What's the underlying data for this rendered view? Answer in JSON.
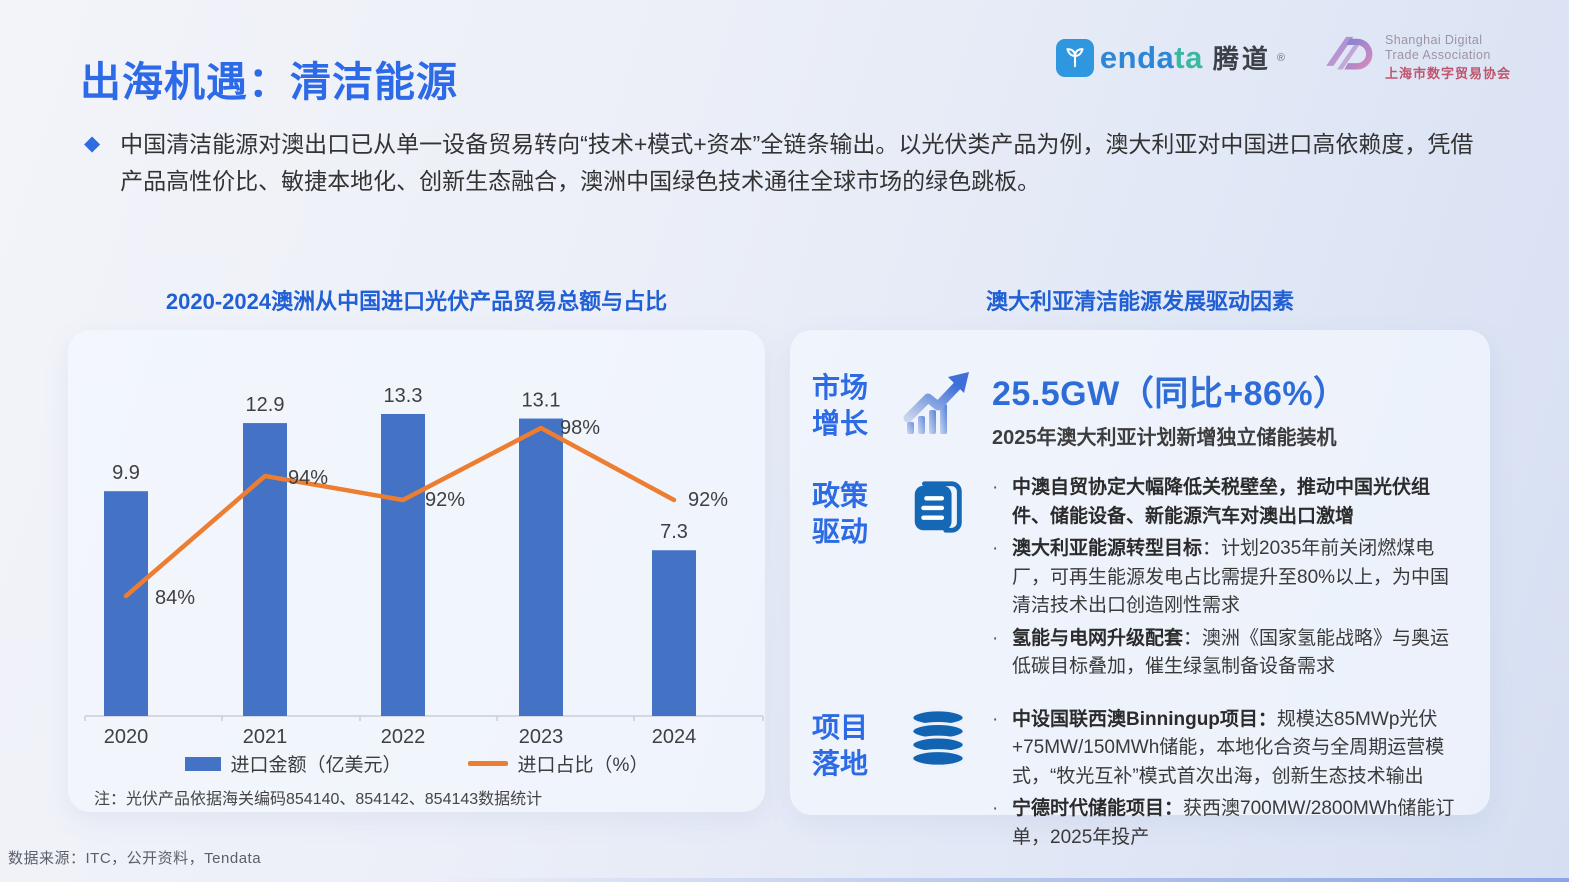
{
  "header": {
    "title": "出海机遇：清洁能源",
    "logos": {
      "tendata": {
        "wordmark_blue": "enda",
        "wordmark_teal": "ta",
        "cn": "腾道",
        "reg": "®"
      },
      "sdta": {
        "en_line1": "Shanghai Digital",
        "en_line2": "Trade Association",
        "cn_line": "上海市数字贸易协会"
      }
    }
  },
  "intro": {
    "bullet": "◆",
    "text": "中国清洁能源对澳出口已从单一设备贸易转向“技术+模式+资本”全链条输出。以光伏类产品为例，澳大利亚对中国进口高依赖度，凭借产品高性价比、敏捷本地化、创新生态融合，澳洲中国绿色技术通往全球市场的绿色跳板。"
  },
  "chart_data": {
    "type": "bar+line",
    "title": "2020-2024澳洲从中国进口光伏产品贸易总额与占比",
    "categories": [
      "2020",
      "2021",
      "2022",
      "2023",
      "2024"
    ],
    "series": [
      {
        "name": "进口金额（亿美元）",
        "type": "bar",
        "values": [
          9.9,
          12.9,
          13.3,
          13.1,
          7.3
        ],
        "color": "#4472c4"
      },
      {
        "name": "进口占比（%）",
        "type": "line",
        "values": [
          84,
          94,
          92,
          98,
          92
        ],
        "labels": [
          "84%",
          "94%",
          "92%",
          "98%",
          "92%"
        ],
        "color": "#ed7d31"
      }
    ],
    "legend_position": "bottom",
    "grid": false,
    "note": "注：光伏产品依据海关编码854140、854142、854143数据统计"
  },
  "drivers": {
    "title": "澳大利亚清洁能源发展驱动因素",
    "sections": [
      {
        "label": "市场增长",
        "icon": "trend-up-icon",
        "stat": "25.5GW（同比+86%）",
        "desc": "2025年澳大利亚计划新增独立储能装机"
      },
      {
        "label": "政策驱动",
        "icon": "document-icon",
        "bullets": [
          [
            {
              "t": "中澳自贸协定大幅降低关税壁垒，推动中国光伏组件、储能设备、新能源汽车对澳出口激增",
              "b": true
            }
          ],
          [
            {
              "t": "澳大利亚能源转型目标",
              "b": true
            },
            {
              "t": "：计划2035年前关闭燃煤电厂，可再生能源发电占比需提升至80%以上，为中国清洁技术出口创造刚性需求",
              "b": false
            }
          ],
          [
            {
              "t": "氢能与电网升级配套",
              "b": true
            },
            {
              "t": "：澳洲《国家氢能战略》与奥运低碳目标叠加，催生绿氢制备设备需求",
              "b": false
            }
          ]
        ]
      },
      {
        "label": "项目落地",
        "icon": "database-icon",
        "bullets": [
          [
            {
              "t": "中设国联西澳Binningup项目：",
              "b": true
            },
            {
              "t": "规模达85MWp光伏+75MW/150MWh储能，本地化合资与全周期运营模式，“牧光互补”模式首次出海，创新生态技术输出",
              "b": false
            }
          ],
          [
            {
              "t": "宁德时代储能项目：",
              "b": true
            },
            {
              "t": "获西澳700MW/2800MWh储能订单，2025年投产",
              "b": false
            }
          ]
        ]
      }
    ]
  },
  "footer": {
    "source": "数据来源：ITC，公开资料，Tendata"
  }
}
